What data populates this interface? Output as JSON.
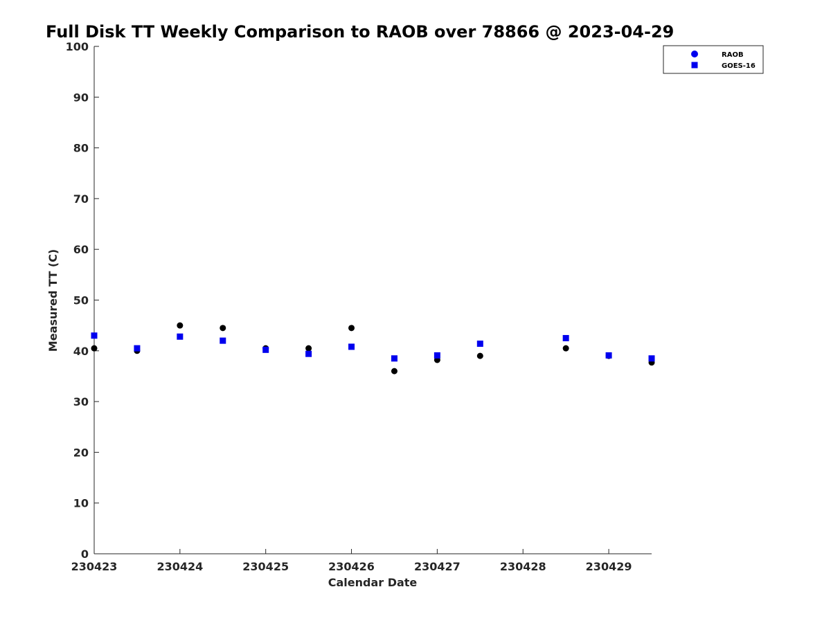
{
  "chart_data": {
    "type": "scatter",
    "title": "Full Disk TT Weekly Comparison to RAOB over 78866 @ 2023-04-29",
    "xlabel": "Calendar Date",
    "ylabel": "Measured TT (C)",
    "x_ticks": [
      "230423",
      "230424",
      "230425",
      "230426",
      "230427",
      "230428",
      "230429"
    ],
    "xlim": [
      "230423",
      "230429.5"
    ],
    "ylim": [
      0,
      100
    ],
    "y_ticks": [
      0,
      10,
      20,
      30,
      40,
      50,
      60,
      70,
      80,
      90,
      100
    ],
    "grid": false,
    "legend": {
      "position": "top-right"
    },
    "series": [
      {
        "name": "RAOB",
        "marker": "circle",
        "color": "#000000",
        "points": [
          {
            "x": "230423.0",
            "y": 40.5
          },
          {
            "x": "230423.5",
            "y": 40.0
          },
          {
            "x": "230424.0",
            "y": 45.0
          },
          {
            "x": "230424.5",
            "y": 44.5
          },
          {
            "x": "230425.0",
            "y": 40.5
          },
          {
            "x": "230425.5",
            "y": 40.5
          },
          {
            "x": "230426.0",
            "y": 44.5
          },
          {
            "x": "230426.5",
            "y": 36.0
          },
          {
            "x": "230427.0",
            "y": 38.2
          },
          {
            "x": "230427.5",
            "y": 39.0
          },
          {
            "x": "230428.5",
            "y": 40.5
          },
          {
            "x": "230429.0",
            "y": 39.0
          },
          {
            "x": "230429.5",
            "y": 37.7
          }
        ]
      },
      {
        "name": "GOES-16",
        "marker": "square",
        "color": "#0000ee",
        "points": [
          {
            "x": "230423.0",
            "y": 43.0
          },
          {
            "x": "230423.5",
            "y": 40.5
          },
          {
            "x": "230424.0",
            "y": 42.8
          },
          {
            "x": "230424.5",
            "y": 42.0
          },
          {
            "x": "230425.0",
            "y": 40.2
          },
          {
            "x": "230425.5",
            "y": 39.4
          },
          {
            "x": "230426.0",
            "y": 40.8
          },
          {
            "x": "230426.5",
            "y": 38.5
          },
          {
            "x": "230427.0",
            "y": 39.1
          },
          {
            "x": "230427.5",
            "y": 41.4
          },
          {
            "x": "230428.5",
            "y": 42.5
          },
          {
            "x": "230429.0",
            "y": 39.1
          },
          {
            "x": "230429.5",
            "y": 38.5
          }
        ]
      }
    ]
  }
}
